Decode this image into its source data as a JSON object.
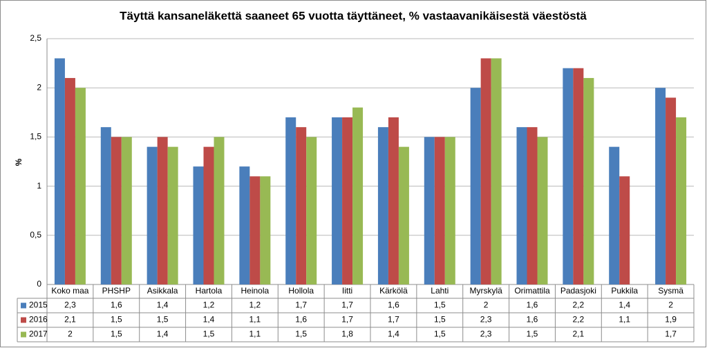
{
  "chart_data": {
    "type": "bar",
    "title": "Täyttä kansaneläkettä saaneet 65 vuotta täyttäneet, % vastaavanikäisestä väestöstä",
    "y_label": "%",
    "categories": [
      "Koko maa",
      "PHSHP",
      "Asikkala",
      "Hartola",
      "Heinola",
      "Hollola",
      "Iitti",
      "Kärkölä",
      "Lahti",
      "Myrskylä",
      "Orimattila",
      "Padasjoki",
      "Pukkila",
      "Sysmä"
    ],
    "series": [
      {
        "name": "2015",
        "color": "#4a7ebb",
        "values": [
          2.3,
          1.6,
          1.4,
          1.2,
          1.2,
          1.7,
          1.7,
          1.6,
          1.5,
          2,
          1.6,
          2.2,
          1.4,
          2
        ],
        "value_labels": [
          "2,3",
          "1,6",
          "1,4",
          "1,2",
          "1,2",
          "1,7",
          "1,7",
          "1,6",
          "1,5",
          "2",
          "1,6",
          "2,2",
          "1,4",
          "2"
        ]
      },
      {
        "name": "2016",
        "color": "#be4b48",
        "values": [
          2.1,
          1.5,
          1.5,
          1.4,
          1.1,
          1.6,
          1.7,
          1.7,
          1.5,
          2.3,
          1.6,
          2.2,
          1.1,
          1.9
        ],
        "value_labels": [
          "2,1",
          "1,5",
          "1,5",
          "1,4",
          "1,1",
          "1,6",
          "1,7",
          "1,7",
          "1,5",
          "2,3",
          "1,6",
          "2,2",
          "1,1",
          "1,9"
        ]
      },
      {
        "name": "2017",
        "color": "#98b954",
        "values": [
          2,
          1.5,
          1.4,
          1.5,
          1.1,
          1.5,
          1.8,
          1.4,
          1.5,
          2.3,
          1.5,
          2.1,
          null,
          1.7
        ],
        "value_labels": [
          "2",
          "1,5",
          "1,4",
          "1,5",
          "1,1",
          "1,5",
          "1,8",
          "1,4",
          "1,5",
          "2,3",
          "1,5",
          "2,1",
          null,
          "1,7"
        ]
      }
    ],
    "ylim": [
      0,
      2.5
    ],
    "yticks": [
      0,
      {
        "value": 0.5,
        "label": "0,5"
      },
      1,
      {
        "value": 1.5,
        "label": "1,5"
      },
      2,
      {
        "value": 2.5,
        "label": "2,5"
      }
    ],
    "grid": true
  }
}
